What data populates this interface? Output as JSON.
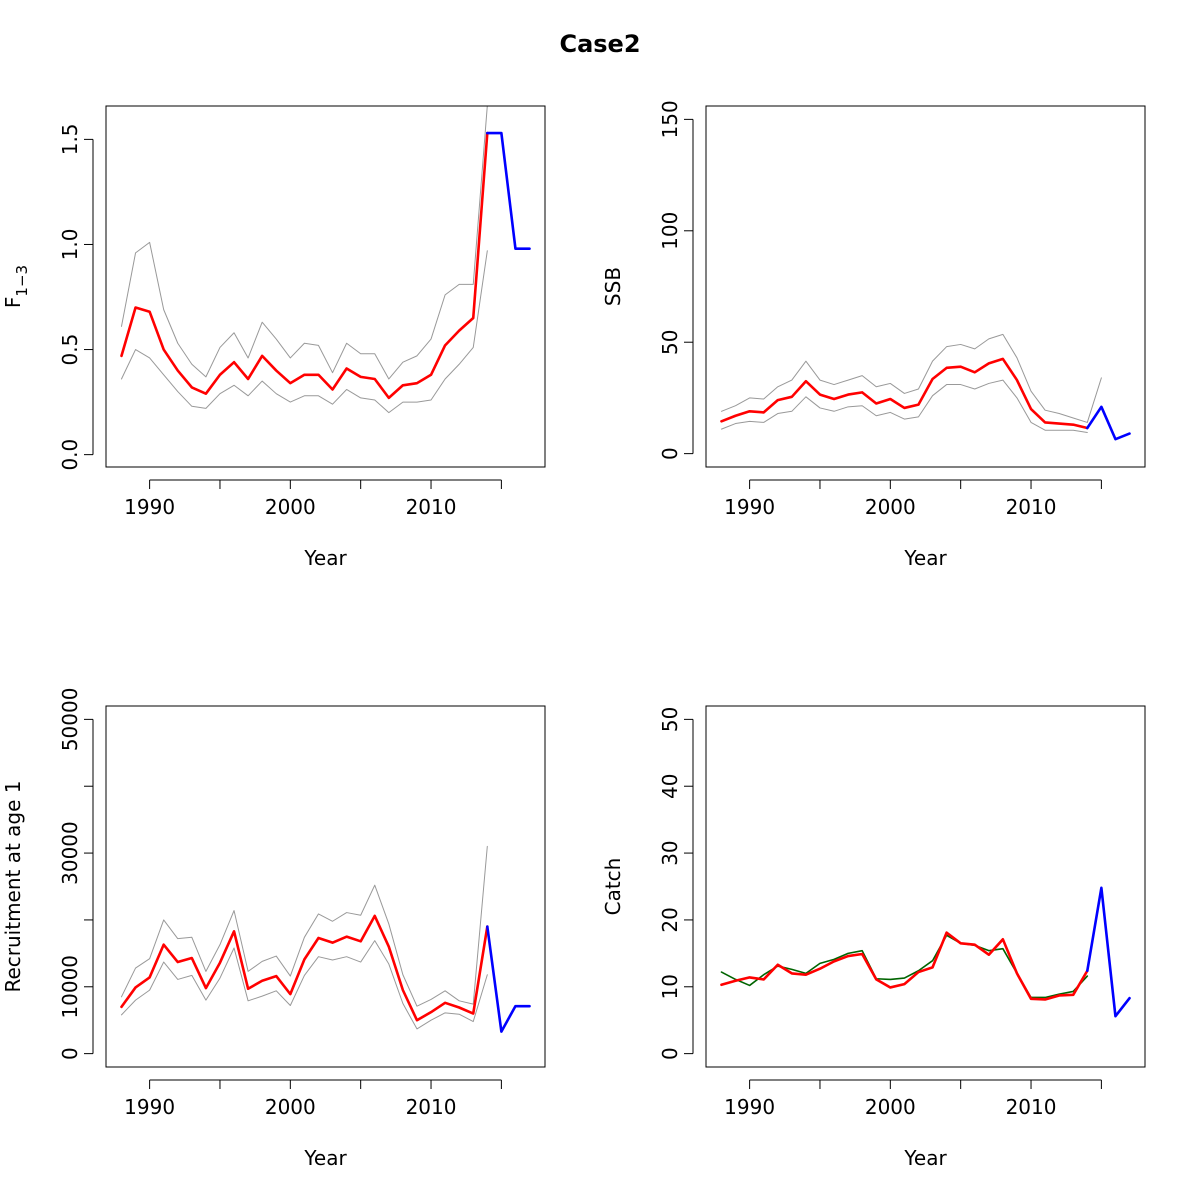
{
  "title": "Case2",
  "colors": {
    "estimate": "#ff0000",
    "projection": "#0000ff",
    "ci": "#999999",
    "observed": "#006400",
    "axis": "#000000"
  },
  "chart_data": [
    {
      "type": "line",
      "id": "f",
      "xlabel": "Year",
      "ylabel": {
        "main": "F",
        "sub": "1−3"
      },
      "xlim": [
        1986.9,
        2018.1
      ],
      "ylim": [
        -0.0588,
        1.6588
      ],
      "xticks": [
        1990,
        1995,
        2000,
        2005,
        2010,
        2015
      ],
      "xtick_labels": [
        "1990",
        "",
        "2000",
        "",
        "2010",
        ""
      ],
      "yticks": [
        0.0,
        0.5,
        1.0,
        1.5
      ],
      "ytick_labels": [
        "0.0",
        "0.5",
        "1.0",
        "1.5"
      ],
      "series": [
        {
          "role": "lower",
          "x": [
            1988,
            1989,
            1990,
            1991,
            1992,
            1993,
            1994,
            1995,
            1996,
            1997,
            1998,
            1999,
            2000,
            2001,
            2002,
            2003,
            2004,
            2005,
            2006,
            2007,
            2008,
            2009,
            2010,
            2011,
            2012,
            2013,
            2014
          ],
          "values": [
            0.36,
            0.5,
            0.46,
            0.38,
            0.3,
            0.23,
            0.22,
            0.29,
            0.33,
            0.28,
            0.35,
            0.29,
            0.25,
            0.28,
            0.28,
            0.24,
            0.31,
            0.27,
            0.26,
            0.2,
            0.25,
            0.25,
            0.26,
            0.36,
            0.43,
            0.51,
            0.97
          ]
        },
        {
          "role": "upper",
          "x": [
            1988,
            1989,
            1990,
            1991,
            1992,
            1993,
            1994,
            1995,
            1996,
            1997,
            1998,
            1999,
            2000,
            2001,
            2002,
            2003,
            2004,
            2005,
            2006,
            2007,
            2008,
            2009,
            2010,
            2011,
            2012,
            2013,
            2014
          ],
          "values": [
            0.61,
            0.96,
            1.01,
            0.69,
            0.53,
            0.43,
            0.37,
            0.51,
            0.58,
            0.46,
            0.63,
            0.55,
            0.46,
            0.53,
            0.52,
            0.39,
            0.53,
            0.48,
            0.48,
            0.36,
            0.44,
            0.47,
            0.55,
            0.76,
            0.81,
            0.81,
            1.66
          ]
        },
        {
          "role": "estimate",
          "x": [
            1988,
            1989,
            1990,
            1991,
            1992,
            1993,
            1994,
            1995,
            1996,
            1997,
            1998,
            1999,
            2000,
            2001,
            2002,
            2003,
            2004,
            2005,
            2006,
            2007,
            2008,
            2009,
            2010,
            2011,
            2012,
            2013,
            2014
          ],
          "values": [
            0.47,
            0.7,
            0.68,
            0.5,
            0.4,
            0.32,
            0.29,
            0.38,
            0.44,
            0.36,
            0.47,
            0.4,
            0.34,
            0.38,
            0.38,
            0.31,
            0.41,
            0.37,
            0.36,
            0.27,
            0.33,
            0.34,
            0.38,
            0.52,
            0.59,
            0.65,
            1.53
          ]
        },
        {
          "role": "projection",
          "x": [
            2014,
            2015,
            2016,
            2017
          ],
          "values": [
            1.53,
            1.53,
            0.98,
            0.98
          ]
        }
      ]
    },
    {
      "type": "line",
      "id": "ssb",
      "xlabel": "Year",
      "ylabel": {
        "main": "SSB"
      },
      "xlim": [
        1986.9,
        2018.1
      ],
      "ylim": [
        -6,
        156
      ],
      "xticks": [
        1990,
        1995,
        2000,
        2005,
        2010,
        2015
      ],
      "xtick_labels": [
        "1990",
        "",
        "2000",
        "",
        "2010",
        ""
      ],
      "yticks": [
        0,
        50,
        100,
        150
      ],
      "ytick_labels": [
        "0",
        "50",
        "100",
        "150"
      ],
      "series": [
        {
          "role": "lower",
          "x": [
            1988,
            1989,
            1990,
            1991,
            1992,
            1993,
            1994,
            1995,
            1996,
            1997,
            1998,
            1999,
            2000,
            2001,
            2002,
            2003,
            2004,
            2005,
            2006,
            2007,
            2008,
            2009,
            2010,
            2011,
            2012,
            2013,
            2014
          ],
          "values": [
            11,
            13.5,
            14.5,
            14,
            18,
            19,
            25.5,
            20.5,
            19,
            21,
            21.5,
            17,
            18.5,
            15.5,
            16.5,
            26,
            31,
            31,
            29,
            31.5,
            33,
            25,
            14,
            10.5,
            10.5,
            10.5,
            9.5
          ]
        },
        {
          "role": "upper",
          "x": [
            1988,
            1989,
            1990,
            1991,
            1992,
            1993,
            1994,
            1995,
            1996,
            1997,
            1998,
            1999,
            2000,
            2001,
            2002,
            2003,
            2004,
            2005,
            2006,
            2007,
            2008,
            2009,
            2010,
            2011,
            2012,
            2013,
            2014,
            2015
          ],
          "values": [
            19,
            21.5,
            25,
            24.5,
            30,
            33,
            41.5,
            33,
            31,
            33,
            35,
            30,
            31.5,
            27,
            29,
            41.5,
            48,
            49,
            47,
            51.5,
            53.5,
            43,
            28,
            19.5,
            18,
            16,
            14,
            34
          ]
        },
        {
          "role": "estimate",
          "x": [
            1988,
            1989,
            1990,
            1991,
            1992,
            1993,
            1994,
            1995,
            1996,
            1997,
            1998,
            1999,
            2000,
            2001,
            2002,
            2003,
            2004,
            2005,
            2006,
            2007,
            2008,
            2009,
            2010,
            2011,
            2012,
            2013,
            2014
          ],
          "values": [
            14.5,
            17,
            19,
            18.5,
            24,
            25.5,
            32.5,
            26.5,
            24.5,
            26.5,
            27.5,
            22.5,
            24.5,
            20.5,
            22,
            33.5,
            38.5,
            39,
            36.5,
            40.5,
            42.5,
            33,
            20,
            14,
            13.5,
            13,
            11.5
          ]
        },
        {
          "role": "projection",
          "x": [
            2014,
            2015,
            2016,
            2017
          ],
          "values": [
            11.5,
            21,
            6.5,
            9
          ]
        }
      ]
    },
    {
      "type": "line",
      "id": "recruitment",
      "xlabel": "Year",
      "ylabel": {
        "main": "Recruitment at age 1"
      },
      "xlim": [
        1986.9,
        2018.1
      ],
      "ylim": [
        -2000,
        52000
      ],
      "xticks": [
        1990,
        1995,
        2000,
        2005,
        2010,
        2015
      ],
      "xtick_labels": [
        "1990",
        "",
        "2000",
        "",
        "2010",
        ""
      ],
      "yticks": [
        0,
        10000,
        20000,
        30000,
        40000,
        50000
      ],
      "ytick_labels": [
        "0",
        "10000",
        "",
        "30000",
        "",
        "50000"
      ],
      "series": [
        {
          "role": "lower",
          "x": [
            1988,
            1989,
            1990,
            1991,
            1992,
            1993,
            1994,
            1995,
            1996,
            1997,
            1998,
            1999,
            2000,
            2001,
            2002,
            2003,
            2004,
            2005,
            2006,
            2007,
            2008,
            2009,
            2010,
            2011,
            2012,
            2013,
            2014
          ],
          "values": [
            5800,
            8000,
            9500,
            13700,
            11100,
            11700,
            8000,
            11300,
            15800,
            7900,
            8600,
            9400,
            7200,
            11700,
            14500,
            14000,
            14500,
            13700,
            16900,
            13400,
            7500,
            3700,
            5000,
            6100,
            5900,
            4800,
            11800
          ]
        },
        {
          "role": "upper",
          "x": [
            1988,
            1989,
            1990,
            1991,
            1992,
            1993,
            1994,
            1995,
            1996,
            1997,
            1998,
            1999,
            2000,
            2001,
            2002,
            2003,
            2004,
            2005,
            2006,
            2007,
            2008,
            2009,
            2010,
            2011,
            2012,
            2013,
            2014
          ],
          "values": [
            8500,
            12800,
            14200,
            20000,
            17200,
            17400,
            12300,
            16300,
            21400,
            12300,
            13800,
            14600,
            11600,
            17400,
            20900,
            19800,
            21100,
            20700,
            25200,
            19400,
            11800,
            7100,
            8100,
            9400,
            7900,
            7400,
            31000
          ]
        },
        {
          "role": "estimate",
          "x": [
            1988,
            1989,
            1990,
            1991,
            1992,
            1993,
            1994,
            1995,
            1996,
            1997,
            1998,
            1999,
            2000,
            2001,
            2002,
            2003,
            2004,
            2005,
            2006,
            2007,
            2008,
            2009,
            2010,
            2011,
            2012,
            2013,
            2014
          ],
          "values": [
            7000,
            9900,
            11400,
            16300,
            13700,
            14300,
            9800,
            13600,
            18300,
            9700,
            10900,
            11600,
            8900,
            14100,
            17300,
            16600,
            17500,
            16800,
            20600,
            16000,
            9500,
            5000,
            6200,
            7600,
            6900,
            6000,
            19000
          ]
        },
        {
          "role": "projection",
          "x": [
            2014,
            2015,
            2016,
            2017
          ],
          "values": [
            19000,
            3300,
            7100,
            7100
          ]
        }
      ]
    },
    {
      "type": "line",
      "id": "catch",
      "xlabel": "Year",
      "ylabel": {
        "main": "Catch"
      },
      "xlim": [
        1986.9,
        2018.1
      ],
      "ylim": [
        -2,
        52
      ],
      "xticks": [
        1990,
        1995,
        2000,
        2005,
        2010,
        2015
      ],
      "xtick_labels": [
        "1990",
        "",
        "2000",
        "",
        "2010",
        ""
      ],
      "yticks": [
        0,
        10,
        20,
        30,
        40,
        50
      ],
      "ytick_labels": [
        "0",
        "10",
        "20",
        "30",
        "40",
        "50"
      ],
      "series": [
        {
          "role": "observed",
          "x": [
            1988,
            1989,
            1990,
            1991,
            1992,
            1993,
            1994,
            1995,
            1996,
            1997,
            1998,
            1999,
            2000,
            2001,
            2002,
            2003,
            2004,
            2005,
            2006,
            2007,
            2008,
            2009,
            2010,
            2011,
            2012,
            2013,
            2014
          ],
          "values": [
            12.2,
            11.1,
            10.2,
            11.8,
            13.1,
            12.6,
            12.0,
            13.5,
            14.1,
            15.0,
            15.4,
            11.2,
            11.1,
            11.3,
            12.4,
            13.9,
            17.7,
            16.5,
            16.2,
            15.4,
            15.7,
            12.0,
            8.4,
            8.4,
            8.9,
            9.3,
            11.6
          ]
        },
        {
          "role": "estimate",
          "x": [
            1988,
            1989,
            1990,
            1991,
            1992,
            1993,
            1994,
            1995,
            1996,
            1997,
            1998,
            1999,
            2000,
            2001,
            2002,
            2003,
            2004,
            2005,
            2006,
            2007,
            2008,
            2009,
            2010,
            2011,
            2012,
            2013,
            2014
          ],
          "values": [
            10.3,
            10.9,
            11.4,
            11.1,
            13.3,
            12.0,
            11.8,
            12.7,
            13.8,
            14.6,
            14.9,
            11.1,
            9.9,
            10.4,
            12.2,
            12.9,
            18.1,
            16.5,
            16.3,
            14.8,
            17.1,
            12.0,
            8.2,
            8.1,
            8.7,
            8.8,
            12.4
          ]
        },
        {
          "role": "projection",
          "x": [
            2014,
            2015,
            2016,
            2017
          ],
          "values": [
            12.4,
            24.8,
            5.6,
            8.3
          ]
        }
      ]
    }
  ]
}
